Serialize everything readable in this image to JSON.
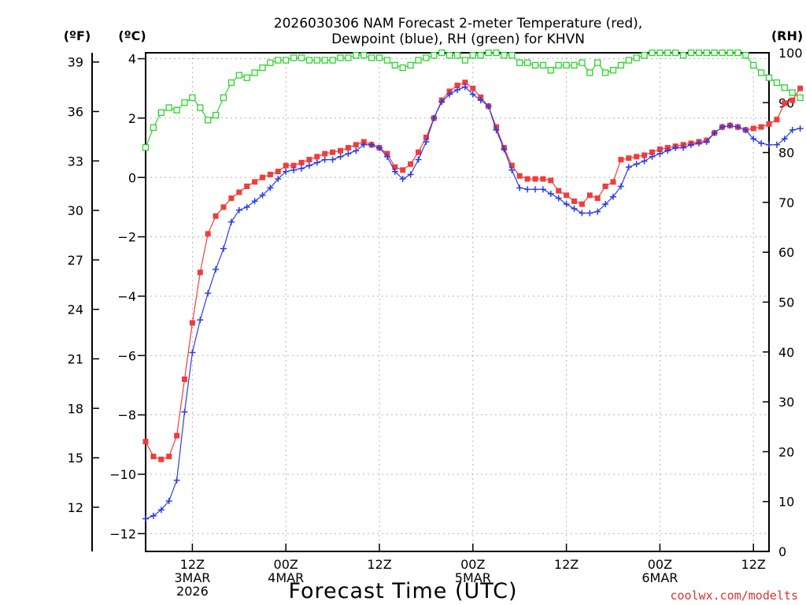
{
  "chart_data": {
    "type": "line",
    "title_line1": "2026030306 NAM Forecast 2-meter Temperature (red),",
    "title_line2": "Dewpoint (blue), RH (green) for KHVN",
    "axis_unit_f": "(ºF)",
    "axis_unit_c": "(ºC)",
    "axis_unit_rh": "(RH)",
    "xlabel": "Forecast Time (UTC)",
    "credit": "coolwx.com/modelts",
    "x_unit": "forecast hour since 2026-03-03 06Z",
    "xlim": [
      0,
      80
    ],
    "ylim_c": [
      -12.6,
      4.2
    ],
    "ylim_rh": [
      0,
      100
    ],
    "ylim_f": [
      9.32,
      39.56
    ],
    "yticks_c": [
      4,
      2,
      0,
      -2,
      -4,
      -6,
      -8,
      -10,
      -12
    ],
    "yticks_c_labels": [
      "4",
      "2",
      "0",
      "−2",
      "−4",
      "−6",
      "−8",
      "−10",
      "−12"
    ],
    "yticks_f": [
      39,
      36,
      33,
      30,
      27,
      24,
      21,
      18,
      15,
      12
    ],
    "yticks_f_labels": [
      "39",
      "36",
      "33",
      "30",
      "27",
      "24",
      "21",
      "18",
      "15",
      "12"
    ],
    "yticks_rh": [
      100,
      90,
      80,
      70,
      60,
      50,
      40,
      30,
      20,
      10,
      0
    ],
    "yticks_rh_labels": [
      "100",
      "90",
      "80",
      "70",
      "60",
      "50",
      "40",
      "30",
      "20",
      "10",
      "0"
    ],
    "xticks": [
      {
        "hour": 6,
        "lines": [
          "12Z",
          "3MAR",
          "2026"
        ]
      },
      {
        "hour": 18,
        "lines": [
          "00Z",
          "4MAR"
        ]
      },
      {
        "hour": 30,
        "lines": [
          "12Z"
        ]
      },
      {
        "hour": 42,
        "lines": [
          "00Z",
          "5MAR"
        ]
      },
      {
        "hour": 54,
        "lines": [
          "12Z"
        ]
      },
      {
        "hour": 66,
        "lines": [
          "00Z",
          "6MAR"
        ]
      },
      {
        "hour": 78,
        "lines": [
          "12Z"
        ]
      }
    ],
    "series": [
      {
        "name": "Temperature",
        "unit": "C",
        "color": "#f03c3c",
        "marker": "square-filled",
        "values": [
          -8.9,
          -9.4,
          -9.5,
          -9.4,
          -8.7,
          -6.8,
          -4.9,
          -3.2,
          -1.9,
          -1.3,
          -1.0,
          -0.7,
          -0.5,
          -0.3,
          -0.15,
          0.0,
          0.1,
          0.2,
          0.4,
          0.4,
          0.5,
          0.6,
          0.7,
          0.8,
          0.85,
          0.9,
          1.0,
          1.1,
          1.2,
          1.1,
          1.0,
          0.8,
          0.35,
          0.25,
          0.45,
          0.85,
          1.35,
          2.0,
          2.6,
          2.9,
          3.1,
          3.2,
          3.0,
          2.7,
          2.4,
          1.7,
          1.0,
          0.4,
          0.05,
          -0.05,
          -0.05,
          -0.05,
          -0.1,
          -0.45,
          -0.6,
          -0.8,
          -0.9,
          -0.6,
          -0.7,
          -0.3,
          -0.15,
          0.6,
          0.65,
          0.7,
          0.75,
          0.85,
          0.95,
          1.0,
          1.05,
          1.1,
          1.15,
          1.2,
          1.25,
          1.5,
          1.7,
          1.75,
          1.7,
          1.6,
          1.65,
          1.7,
          1.8,
          1.95,
          2.5,
          2.6,
          3.0
        ]
      },
      {
        "name": "Dewpoint",
        "unit": "C",
        "color": "#2c3ce6",
        "marker": "plus",
        "values": [
          -11.5,
          -11.4,
          -11.2,
          -10.9,
          -10.2,
          -7.9,
          -5.9,
          -4.8,
          -3.9,
          -3.1,
          -2.4,
          -1.5,
          -1.1,
          -1.0,
          -0.8,
          -0.6,
          -0.35,
          -0.05,
          0.2,
          0.25,
          0.3,
          0.4,
          0.5,
          0.6,
          0.6,
          0.7,
          0.8,
          0.9,
          1.1,
          1.1,
          1.0,
          0.7,
          0.2,
          -0.05,
          0.1,
          0.6,
          1.2,
          2.0,
          2.55,
          2.8,
          2.95,
          3.05,
          2.8,
          2.6,
          2.4,
          1.6,
          0.95,
          0.25,
          -0.35,
          -0.4,
          -0.4,
          -0.4,
          -0.55,
          -0.7,
          -0.9,
          -1.05,
          -1.2,
          -1.2,
          -1.15,
          -0.9,
          -0.65,
          -0.3,
          0.35,
          0.45,
          0.55,
          0.7,
          0.8,
          0.9,
          1.0,
          1.0,
          1.1,
          1.15,
          1.2,
          1.5,
          1.7,
          1.75,
          1.7,
          1.6,
          1.3,
          1.15,
          1.1,
          1.1,
          1.3,
          1.6,
          1.65
        ]
      },
      {
        "name": "RH",
        "unit": "%",
        "color": "#2ed22e",
        "marker": "square-open",
        "values": [
          81,
          85,
          88,
          89,
          88.5,
          90,
          91,
          89,
          86.5,
          87.5,
          91,
          94,
          95.5,
          95,
          96,
          97,
          98,
          98.5,
          98.5,
          99,
          99,
          98.5,
          98.5,
          98.5,
          98.5,
          99,
          99,
          99.5,
          99.5,
          99,
          99,
          98.5,
          97.5,
          97,
          97.5,
          98.5,
          99,
          99.5,
          100,
          99.5,
          99.5,
          98.5,
          99.5,
          99.5,
          100,
          100,
          99.5,
          99.5,
          98,
          98,
          97.5,
          97.5,
          96.5,
          97.5,
          97.5,
          97.5,
          98,
          96,
          98,
          96,
          96.5,
          97.5,
          98.5,
          99,
          99.5,
          100,
          100,
          100,
          100,
          99.5,
          100,
          100,
          100,
          100,
          100,
          100,
          100,
          99.5,
          97.5,
          96,
          95,
          94,
          93,
          92,
          91
        ]
      }
    ]
  }
}
